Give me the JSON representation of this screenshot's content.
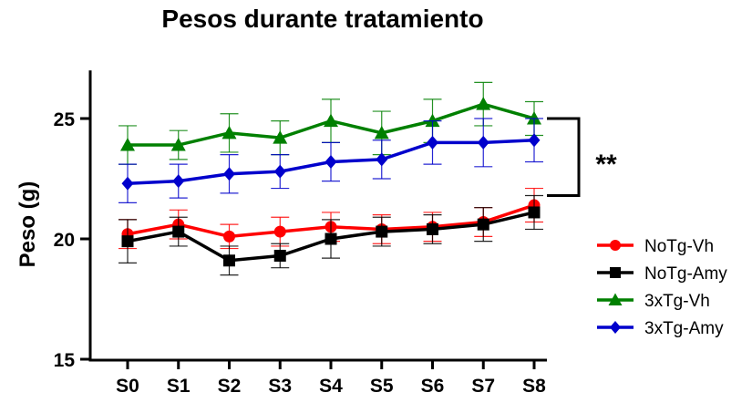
{
  "chart_data": {
    "type": "line",
    "title": "Pesos durante tratamiento",
    "xlabel": "",
    "ylabel": "Peso (g)",
    "categories": [
      "S0",
      "S1",
      "S2",
      "S3",
      "S4",
      "S5",
      "S6",
      "S7",
      "S8"
    ],
    "ylim": [
      15,
      27
    ],
    "yticks": [
      15,
      20,
      25
    ],
    "grid": false,
    "legend_position": "right",
    "series": [
      {
        "name": "NoTg-Vh",
        "color": "#ff0000",
        "marker": "circle",
        "values": [
          20.2,
          20.6,
          20.1,
          20.3,
          20.5,
          20.4,
          20.5,
          20.7,
          21.4
        ],
        "errors": [
          0.6,
          0.6,
          0.5,
          0.6,
          0.6,
          0.6,
          0.6,
          0.6,
          0.7
        ]
      },
      {
        "name": "NoTg-Amy",
        "color": "#000000",
        "marker": "square",
        "values": [
          19.9,
          20.3,
          19.1,
          19.3,
          20.0,
          20.3,
          20.4,
          20.6,
          21.1
        ],
        "errors": [
          0.9,
          0.6,
          0.6,
          0.5,
          0.8,
          0.6,
          0.6,
          0.7,
          0.7
        ]
      },
      {
        "name": "3xTg-Vh",
        "color": "#008000",
        "marker": "triangle",
        "values": [
          23.9,
          23.9,
          24.4,
          24.2,
          24.9,
          24.4,
          24.9,
          25.6,
          25.0
        ],
        "errors": [
          0.8,
          0.6,
          0.8,
          0.7,
          0.9,
          0.9,
          0.9,
          0.9,
          0.7
        ]
      },
      {
        "name": "3xTg-Amy",
        "color": "#0000cc",
        "marker": "diamond",
        "values": [
          22.3,
          22.4,
          22.7,
          22.8,
          23.2,
          23.3,
          24.0,
          24.0,
          24.1
        ],
        "errors": [
          0.8,
          0.7,
          0.8,
          0.7,
          0.8,
          0.8,
          0.9,
          1.0,
          0.9
        ]
      }
    ],
    "annotation": {
      "text": "**",
      "bracket_range": [
        21.8,
        25.0
      ]
    }
  }
}
